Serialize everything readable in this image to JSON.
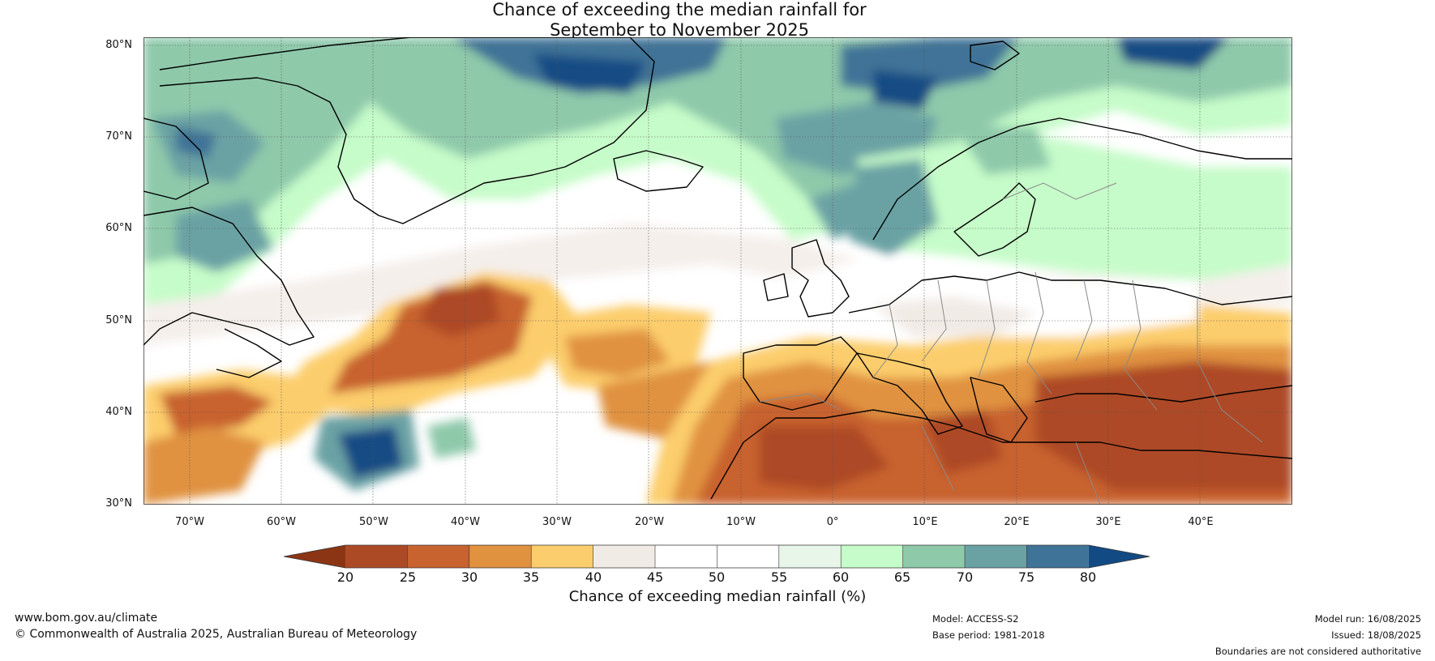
{
  "title": {
    "line1": "Chance of exceeding the median rainfall for",
    "line2": "September to November 2025"
  },
  "map": {
    "lat_labels": [
      "80°N",
      "70°N",
      "60°N",
      "50°N",
      "40°N",
      "30°N"
    ],
    "lon_labels": [
      "70°W",
      "60°W",
      "50°W",
      "40°W",
      "30°W",
      "20°W",
      "10°W",
      "0°",
      "10°E",
      "20°E",
      "30°E",
      "40°E"
    ],
    "lat_range": [
      30,
      81
    ],
    "lon_range": [
      -75,
      50
    ]
  },
  "colorbar": {
    "ticks": [
      "20",
      "25",
      "30",
      "35",
      "40",
      "45",
      "50",
      "55",
      "60",
      "65",
      "70",
      "75",
      "80"
    ],
    "under_color": "#8c3515",
    "over_color": "#124b84",
    "colors": [
      "#ad4a26",
      "#c8622f",
      "#e0923f",
      "#fccd6c",
      "#f1ebe6",
      "#ffffff",
      "#ffffff",
      "#e8f6e9",
      "#c6fcc9",
      "#8ec9aa",
      "#6aa2a4",
      "#3f7397"
    ],
    "label": "Chance of exceeding median rainfall (%)"
  },
  "footer": {
    "website": "www.bom.gov.au/climate",
    "copyright": "© Commonwealth of Australia 2025, Australian Bureau of Meteorology",
    "model": "Model: ACCESS-S2",
    "base_period": "Base period: 1981-2018",
    "model_run": "Model run: 16/08/2025",
    "issued": "Issued: 18/08/2025",
    "disclaimer": "Boundaries are not considered authoritative"
  }
}
